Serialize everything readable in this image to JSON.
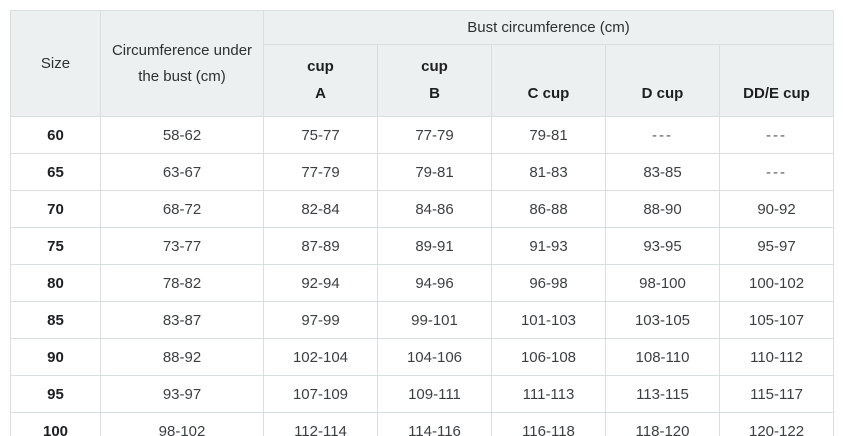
{
  "chart_data": {
    "type": "table",
    "header": {
      "size_label": "Size",
      "underbust_label": "Circumference under the bust (cm)",
      "bust_group_label": "Bust circumference (cm)",
      "cup_headers": [
        {
          "line1": "cup",
          "line2": "A"
        },
        {
          "line1": "cup",
          "line2": "B"
        },
        {
          "line1": "",
          "line2": "C cup"
        },
        {
          "line1": "",
          "line2": "D cup"
        },
        {
          "line1": "",
          "line2": "DD/E cup"
        }
      ]
    },
    "rows": [
      {
        "size": "60",
        "underbust": "58-62",
        "cups": [
          "75-77",
          "77-79",
          "79-81",
          "---",
          "---"
        ]
      },
      {
        "size": "65",
        "underbust": "63-67",
        "cups": [
          "77-79",
          "79-81",
          "81-83",
          "83-85",
          "---"
        ]
      },
      {
        "size": "70",
        "underbust": "68-72",
        "cups": [
          "82-84",
          "84-86",
          "86-88",
          "88-90",
          "90-92"
        ]
      },
      {
        "size": "75",
        "underbust": "73-77",
        "cups": [
          "87-89",
          "89-91",
          "91-93",
          "93-95",
          "95-97"
        ]
      },
      {
        "size": "80",
        "underbust": "78-82",
        "cups": [
          "92-94",
          "94-96",
          "96-98",
          "98-100",
          "100-102"
        ]
      },
      {
        "size": "85",
        "underbust": "83-87",
        "cups": [
          "97-99",
          "99-101",
          "101-103",
          "103-105",
          "105-107"
        ]
      },
      {
        "size": "90",
        "underbust": "88-92",
        "cups": [
          "102-104",
          "104-106",
          "106-108",
          "108-110",
          "110-112"
        ]
      },
      {
        "size": "95",
        "underbust": "93-97",
        "cups": [
          "107-109",
          "109-111",
          "111-113",
          "113-115",
          "115-117"
        ]
      },
      {
        "size": "100",
        "underbust": "98-102",
        "cups": [
          "112-114",
          "114-116",
          "116-118",
          "118-120",
          "120-122"
        ]
      }
    ]
  },
  "colors": {
    "background": "#ffffff",
    "header_bg": "#edf0f1",
    "border": "#d9dee0",
    "text_header": "#2d3032",
    "text_bold": "#1d1f21",
    "text_regular": "#3c3f41",
    "text_dash": "#54585a"
  }
}
